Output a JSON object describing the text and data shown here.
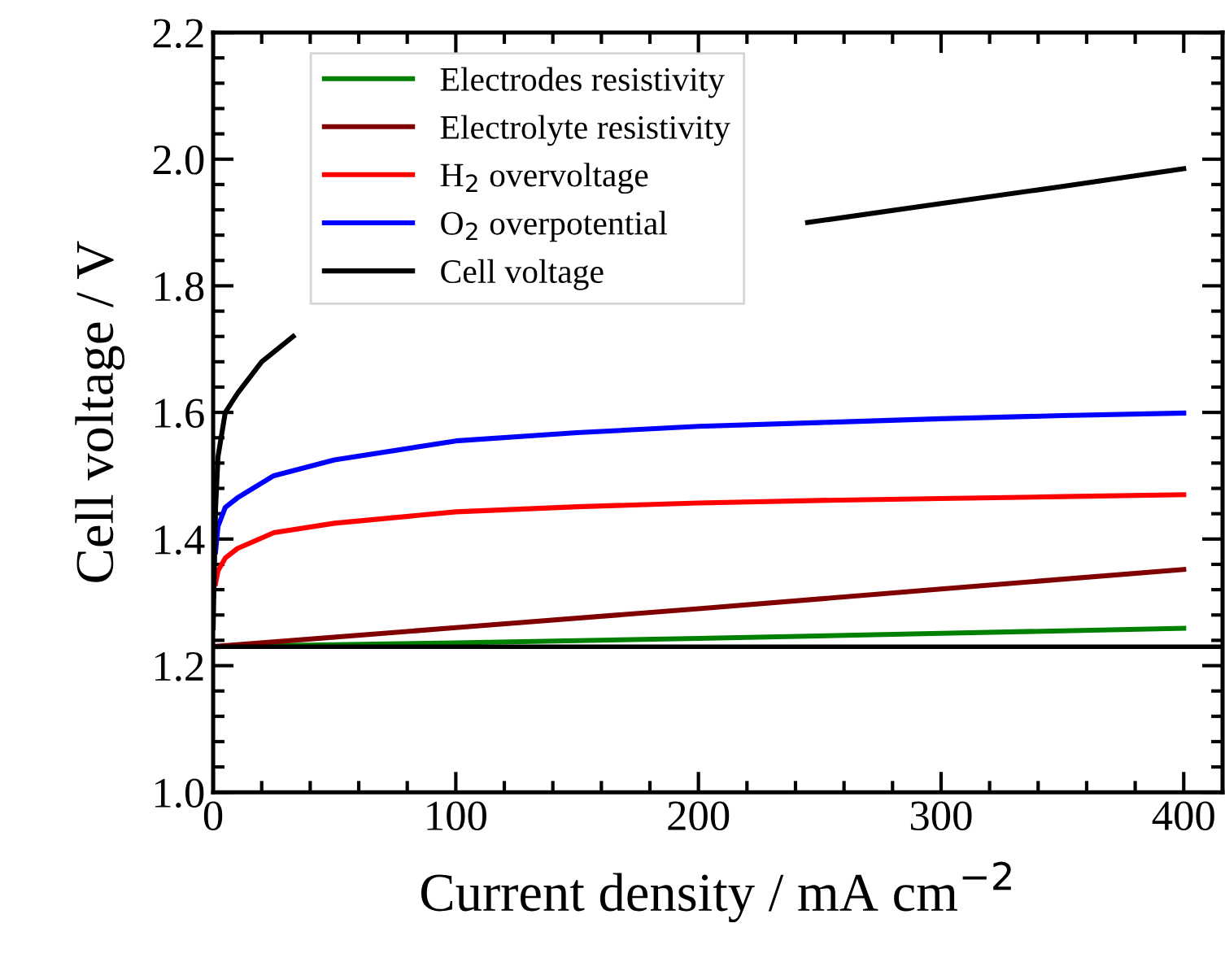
{
  "chart_data": {
    "type": "line",
    "xlabel": "Current density / mA cm$^{−2}$",
    "ylabel": "Cell voltage / V",
    "series": [
      {
        "name": "Electrodes resistivity",
        "color": "#008000",
        "x": [
          0,
          100,
          200,
          300,
          400
        ],
        "values": [
          1.23,
          1.236,
          1.243,
          1.251,
          1.259
        ]
      },
      {
        "name": "Electrolyte resistivity",
        "color": "#800000",
        "x": [
          0,
          100,
          200,
          300,
          400
        ],
        "values": [
          1.23,
          1.26,
          1.29,
          1.321,
          1.352
        ]
      },
      {
        "name": "H$_{2}$ overvoltage",
        "color": "#ff0000",
        "x": [
          1,
          2,
          5,
          10,
          25,
          50,
          100,
          150,
          200,
          250,
          300,
          350,
          400
        ],
        "values": [
          1.33,
          1.35,
          1.37,
          1.385,
          1.41,
          1.425,
          1.443,
          1.451,
          1.457,
          1.461,
          1.464,
          1.467,
          1.47
        ]
      },
      {
        "name": "O$_{2}$ overpotential",
        "color": "#0000ff",
        "x": [
          1,
          2,
          5,
          10,
          25,
          50,
          100,
          150,
          200,
          250,
          300,
          350,
          400
        ],
        "values": [
          1.38,
          1.42,
          1.45,
          1.465,
          1.5,
          1.525,
          1.555,
          1.568,
          1.578,
          1.584,
          1.59,
          1.595,
          1.599
        ]
      },
      {
        "name": "Cell voltage",
        "color": "#000000",
        "x": [
          0,
          1,
          2,
          5,
          10,
          20,
          33,
          140,
          245,
          300,
          350,
          400
        ],
        "values": [
          1.26,
          1.45,
          1.53,
          1.6,
          1.63,
          1.68,
          1.72,
          null,
          1.9,
          1.93,
          1.957,
          1.985
        ]
      }
    ],
    "xlim": [
      0,
      416
    ],
    "ylim": [
      1.0,
      2.2
    ],
    "xticks": [
      0,
      100,
      200,
      300,
      400
    ],
    "yticks": [
      {
        "value": 1.0,
        "label": "1.0"
      },
      {
        "value": 1.2,
        "label": "1.2"
      },
      {
        "value": 1.4,
        "label": "1.4"
      },
      {
        "value": 1.6,
        "label": "1.6"
      },
      {
        "value": 1.8,
        "label": "1.8"
      },
      {
        "value": 2.0,
        "label": "2.0"
      },
      {
        "value": 2.2,
        "label": "2.2"
      }
    ],
    "ref_lines": [
      {
        "axis": "y",
        "value": 1.23,
        "color": "#000000",
        "line_style": "solid"
      }
    ],
    "legend": "top left",
    "grid": false,
    "marker": "none",
    "line_style": "solid"
  }
}
